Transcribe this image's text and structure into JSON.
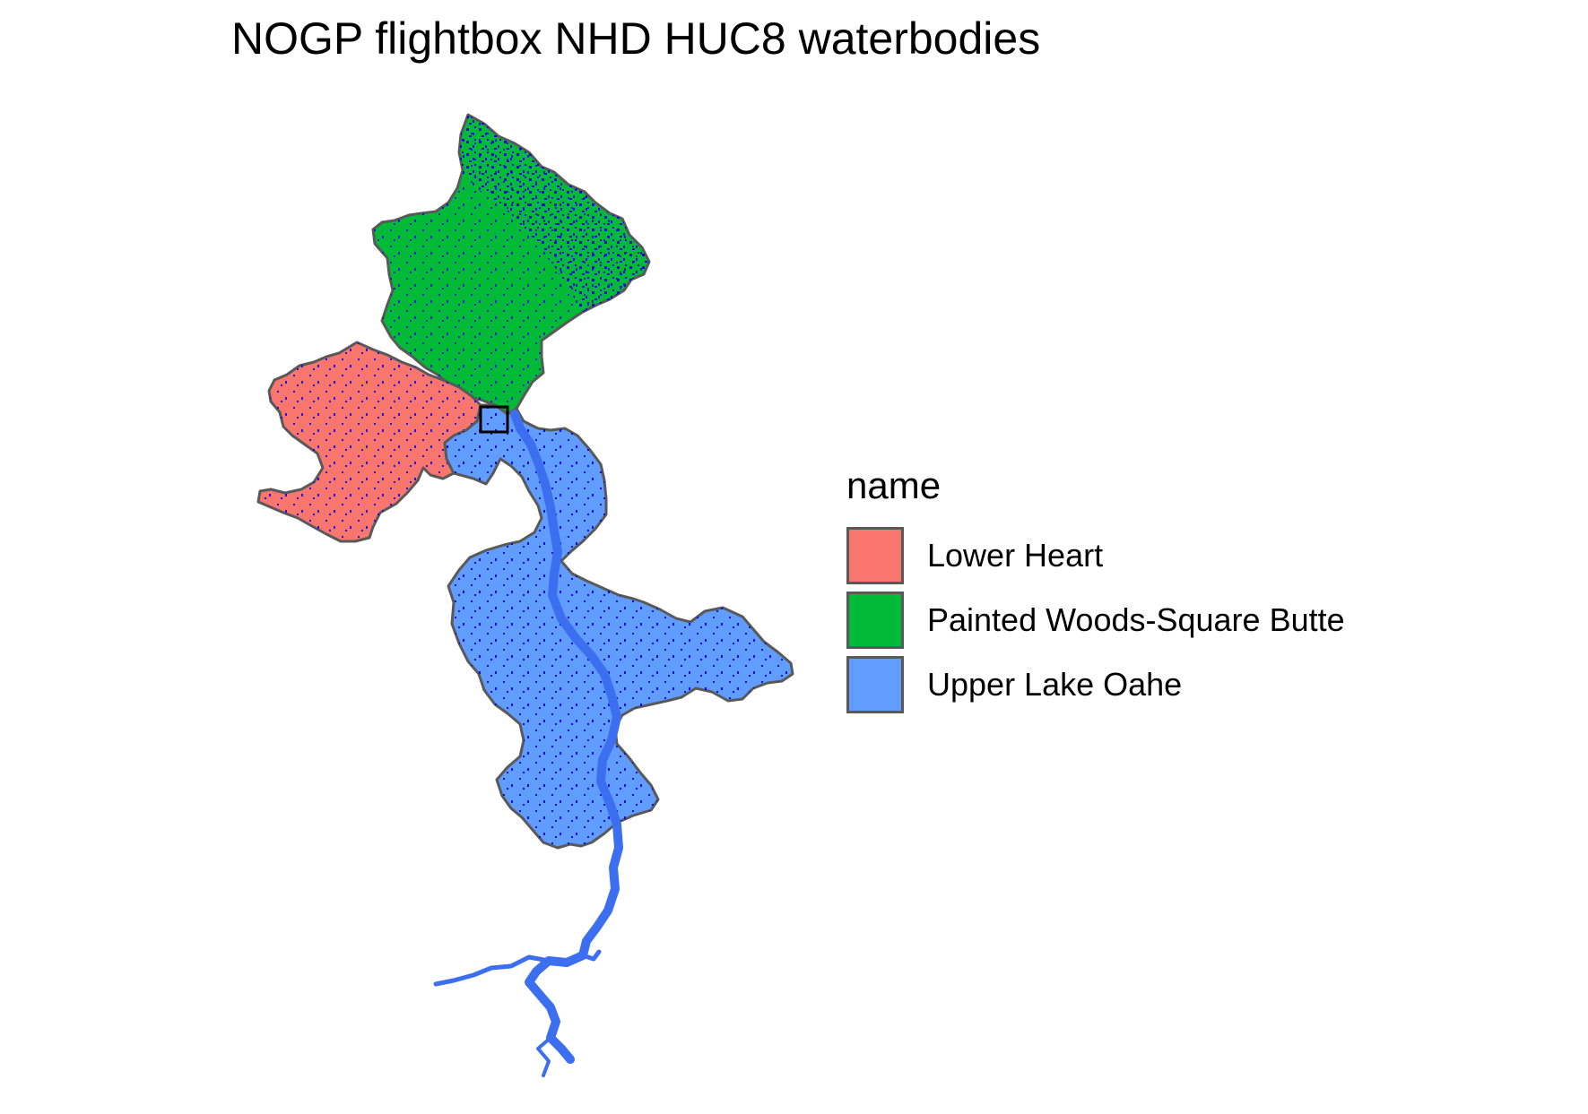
{
  "title": "NOGP flightbox NHD HUC8 waterbodies",
  "legend": {
    "title": "name",
    "items": [
      {
        "label": "Lower Heart",
        "color": "#F8766D"
      },
      {
        "label": "Painted Woods-Square Butte",
        "color": "#00BA38"
      },
      {
        "label": "Upper Lake Oahe",
        "color": "#619CFF"
      }
    ]
  },
  "colors": {
    "waterbody": "#0000EE",
    "lake": "#3B6FF0",
    "boundary": "#595959",
    "flightbox": "#000000"
  }
}
